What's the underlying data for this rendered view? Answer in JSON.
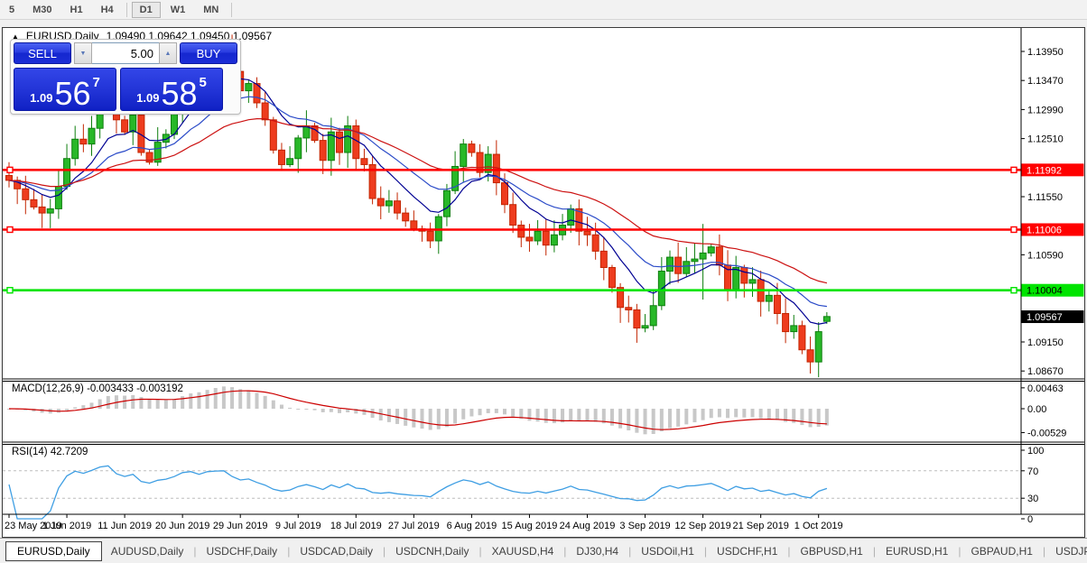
{
  "toolbar": {
    "timeframes": [
      "5",
      "M30",
      "H1",
      "H4",
      "D1",
      "W1",
      "MN"
    ],
    "active": "D1"
  },
  "chart_header": {
    "collapse": "▲",
    "symbol_title": "EURUSD,Daily",
    "ohlc_text": "1.09490 1.09642 1.09450 1.09567"
  },
  "trade_panel": {
    "sell_label": "SELL",
    "buy_label": "BUY",
    "volume": "5.00",
    "spin_down": "▼",
    "spin_up": "▲",
    "sell": {
      "big": "1.09",
      "pips": "56",
      "pt": "7"
    },
    "buy": {
      "big": "1.09",
      "pips": "58",
      "pt": "5"
    }
  },
  "indicators": {
    "macd_label": "MACD(12,26,9) -0.003433 -0.003192",
    "rsi_label": "RSI(14) 42.7209"
  },
  "chart_data": {
    "type": "candlestick",
    "symbol": "EURUSD",
    "timeframe": "Daily",
    "last_ohlc": {
      "open": 1.0949,
      "high": 1.09642,
      "low": 1.0945,
      "close": 1.09567
    },
    "first_open": 1.119,
    "closes": [
      1.1182,
      1.1168,
      1.115,
      1.1138,
      1.1128,
      1.1135,
      1.1172,
      1.1218,
      1.125,
      1.1242,
      1.1268,
      1.1312,
      1.133,
      1.1282,
      1.1262,
      1.129,
      1.1228,
      1.1212,
      1.1245,
      1.1258,
      1.1292,
      1.1352,
      1.137,
      1.1348,
      1.1392,
      1.1402,
      1.1408,
      1.1362,
      1.133,
      1.1342,
      1.131,
      1.1282,
      1.1232,
      1.1208,
      1.1218,
      1.1252,
      1.1272,
      1.1248,
      1.1215,
      1.1262,
      1.1228,
      1.1272,
      1.1218,
      1.1208,
      1.1152,
      1.114,
      1.1148,
      1.1128,
      1.1115,
      1.1102,
      1.1098,
      1.1082,
      1.1122,
      1.1165,
      1.1205,
      1.1242,
      1.1228,
      1.1195,
      1.1225,
      1.1178,
      1.1142,
      1.1108,
      1.1088,
      1.1082,
      1.1098,
      1.1075,
      1.1092,
      1.1108,
      1.1135,
      1.1098,
      1.1092,
      1.1065,
      1.1038,
      1.1005,
      1.0972,
      1.0968,
      1.0938,
      1.0942,
      1.0975,
      1.1032,
      1.1055,
      1.1028,
      1.1048,
      1.1052,
      1.1062,
      1.1072,
      1.1042,
      1.1002,
      1.1038,
      1.1012,
      1.1018,
      1.0982,
      1.0992,
      1.0962,
      1.0932,
      1.0942,
      1.0902,
      1.0882,
      1.0932,
      1.0957
    ],
    "wick_overrides": {
      "26": {
        "high": 1.1412
      },
      "84": {
        "high": 1.111,
        "low": 1.0985
      },
      "99": {
        "open": 1.0949,
        "high": 1.09642,
        "low": 1.0945
      }
    },
    "bull_color": "#28B828",
    "bull_edge": "#0E7E0E",
    "bear_color": "#EE3C1E",
    "bear_edge": "#C22500",
    "moving_averages": [
      {
        "period": 9,
        "color": "#000093"
      },
      {
        "period": 18,
        "color": "#2B4BC8"
      },
      {
        "period": 34,
        "color": "#CC1111"
      }
    ],
    "levels": [
      {
        "price": 1.11992,
        "label": "1.11992",
        "color": "#FF0000",
        "text_color": "#FFFFFF"
      },
      {
        "price": 1.11006,
        "label": "1.11006",
        "color": "#FF0000",
        "text_color": "#FFFFFF"
      },
      {
        "price": 1.10004,
        "label": "1.10004",
        "color": "#00E400",
        "text_color": "#000000"
      }
    ],
    "current_price": {
      "value": 1.09567,
      "label": "1.09567",
      "box_color": "#000000",
      "text_color": "#FFFFFF"
    },
    "price_axis_ticks": [
      "1.13950",
      "1.13470",
      "1.12990",
      "1.12510",
      "1.11550",
      "1.10590",
      "1.09150",
      "1.08670"
    ],
    "macd": {
      "params": [
        12,
        26,
        9
      ],
      "value": -0.003433,
      "signal_value": -0.003192,
      "axis": [
        "0.00463",
        "0.00",
        "-0.00529"
      ],
      "hist_color": "#C8C8C8",
      "signal_color": "#CC0000"
    },
    "rsi": {
      "period": 14,
      "value": 42.7209,
      "axis": [
        "100",
        "70",
        "30",
        "0"
      ],
      "level_lines": [
        70,
        30
      ],
      "line_color": "#3E9EE3",
      "level_line_color": "#BDBDBD"
    },
    "x_axis_dates": [
      "23 May 2019",
      "1 Jun 2019",
      "11 Jun 2019",
      "20 Jun 2019",
      "29 Jun 2019",
      "9 Jul 2019",
      "18 Jul 2019",
      "27 Jul 2019",
      "6 Aug 2019",
      "15 Aug 2019",
      "24 Aug 2019",
      "3 Sep 2019",
      "12 Sep 2019",
      "21 Sep 2019",
      "1 Oct 2019"
    ]
  },
  "tab_bar": {
    "tabs": [
      {
        "label": "EURUSD,Daily",
        "active": true
      },
      {
        "label": "AUDUSD,Daily",
        "active": false
      },
      {
        "label": "USDCHF,Daily",
        "active": false
      },
      {
        "label": "USDCAD,Daily",
        "active": false
      },
      {
        "label": "USDCNH,Daily",
        "active": false
      },
      {
        "label": "XAUUSD,H4",
        "active": false
      },
      {
        "label": "DJ30,H4",
        "active": false
      },
      {
        "label": "USDOil,H1",
        "active": false
      },
      {
        "label": "USDCHF,H1",
        "active": false
      },
      {
        "label": "GBPUSD,H1",
        "active": false
      },
      {
        "label": "EURUSD,H1",
        "active": false
      },
      {
        "label": "GBPAUD,H1",
        "active": false
      },
      {
        "label": "USDJP",
        "active": false
      }
    ],
    "scroll_left": "◄",
    "scroll_right": "►"
  }
}
